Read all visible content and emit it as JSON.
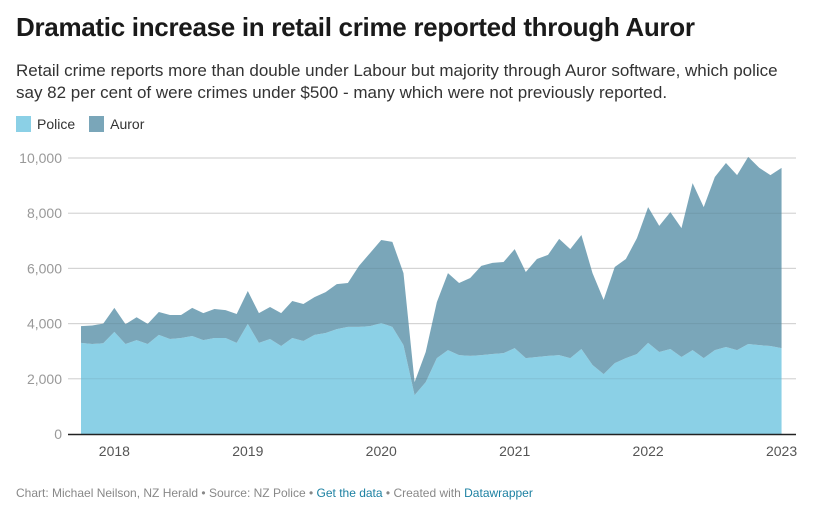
{
  "title": "Dramatic increase in retail crime reported through Auror",
  "subtitle": "Retail crime reports more than double under Labour but majority through Auror software, which police say 82 per cent of were crimes under $500 - many which were not previously reported.",
  "legend": [
    {
      "label": "Police",
      "color": "#8bd0e6"
    },
    {
      "label": "Auror",
      "color": "#7aa6b9"
    }
  ],
  "footer": {
    "chart_credit": "Chart: Michael Neilson, NZ Herald",
    "sep1": " • ",
    "source": "Source: NZ Police",
    "sep2": " • ",
    "get_data_link": "Get the data",
    "sep3": " • ",
    "created_with": "Created with ",
    "datawrapper_link": "Datawrapper"
  },
  "chart_data": {
    "type": "area",
    "stacked": true,
    "title": "Dramatic increase in retail crime reported through Auror",
    "xlabel": "",
    "ylabel": "",
    "x_start": "2017-10",
    "x_end": "2023-01",
    "x_interval": "month",
    "ylim": [
      0,
      10000
    ],
    "yticks": [
      0,
      2000,
      4000,
      6000,
      8000,
      10000
    ],
    "ytick_labels": [
      "0",
      "2,000",
      "4,000",
      "6,000",
      "8,000",
      "10,000"
    ],
    "xtick_labels": [
      "2018",
      "2019",
      "2020",
      "2021",
      "2022",
      "2023"
    ],
    "grid": true,
    "legend_position": "top-left",
    "series": [
      {
        "name": "Police",
        "color": "#8bd0e6",
        "values": [
          3300,
          3260,
          3290,
          3700,
          3260,
          3400,
          3260,
          3590,
          3440,
          3480,
          3550,
          3400,
          3480,
          3480,
          3300,
          3990,
          3300,
          3440,
          3190,
          3480,
          3370,
          3590,
          3660,
          3800,
          3880,
          3880,
          3910,
          4020,
          3880,
          3220,
          1410,
          1880,
          2750,
          3040,
          2860,
          2830,
          2860,
          2900,
          2930,
          3110,
          2750,
          2790,
          2830,
          2860,
          2750,
          3080,
          2500,
          2170,
          2570,
          2750,
          2900,
          3300,
          2970,
          3080,
          2790,
          3040,
          2750,
          3040,
          3150,
          3040,
          3260,
          3220,
          3190,
          3110
        ]
      },
      {
        "name": "Auror",
        "color": "#7aa6b9",
        "values": [
          610,
          670,
          710,
          870,
          720,
          830,
          730,
          830,
          870,
          830,
          1020,
          980,
          1050,
          1010,
          1050,
          1190,
          1080,
          1160,
          1190,
          1340,
          1340,
          1370,
          1480,
          1630,
          1590,
          2210,
          2650,
          3010,
          3080,
          2610,
          470,
          1090,
          2030,
          2790,
          2610,
          2820,
          3230,
          3300,
          3300,
          3590,
          3120,
          3550,
          3660,
          4210,
          3950,
          4130,
          3330,
          2690,
          3480,
          3590,
          4200,
          4920,
          4570,
          4960,
          4670,
          6050,
          5470,
          6270,
          6670,
          6340,
          6780,
          6420,
          6190,
          6530
        ]
      }
    ]
  }
}
